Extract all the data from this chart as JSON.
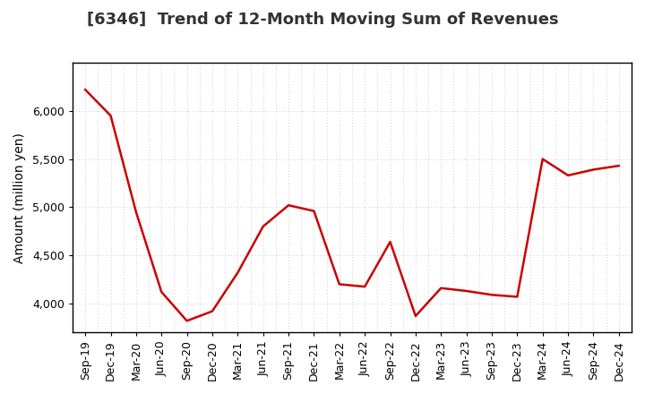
{
  "title": "[6346]  Trend of 12-Month Moving Sum of Revenues",
  "ylabel": "Amount (million yen)",
  "line_color": "#cc0000",
  "line_width": 1.8,
  "background_color": "#ffffff",
  "plot_background_color": "#ffffff",
  "grid_color": "#bbbbbb",
  "x_labels": [
    "Sep-19",
    "Dec-19",
    "Mar-20",
    "Jun-20",
    "Sep-20",
    "Dec-20",
    "Mar-21",
    "Jun-21",
    "Sep-21",
    "Dec-21",
    "Mar-22",
    "Jun-22",
    "Sep-22",
    "Dec-22",
    "Mar-23",
    "Jun-23",
    "Sep-23",
    "Dec-23",
    "Mar-24",
    "Jun-24",
    "Sep-24",
    "Dec-24"
  ],
  "y_values": [
    6220,
    5950,
    4950,
    4120,
    3820,
    3920,
    4320,
    4800,
    5020,
    4960,
    4200,
    4175,
    4640,
    3870,
    4160,
    4130,
    4090,
    4070,
    5500,
    5330,
    5390,
    5430
  ],
  "ylim_min": 3700,
  "ylim_max": 6500,
  "yticks": [
    4000,
    4500,
    5000,
    5500,
    6000
  ],
  "title_fontsize": 13,
  "title_color": "#333333",
  "axis_label_fontsize": 10,
  "tick_fontsize": 9
}
